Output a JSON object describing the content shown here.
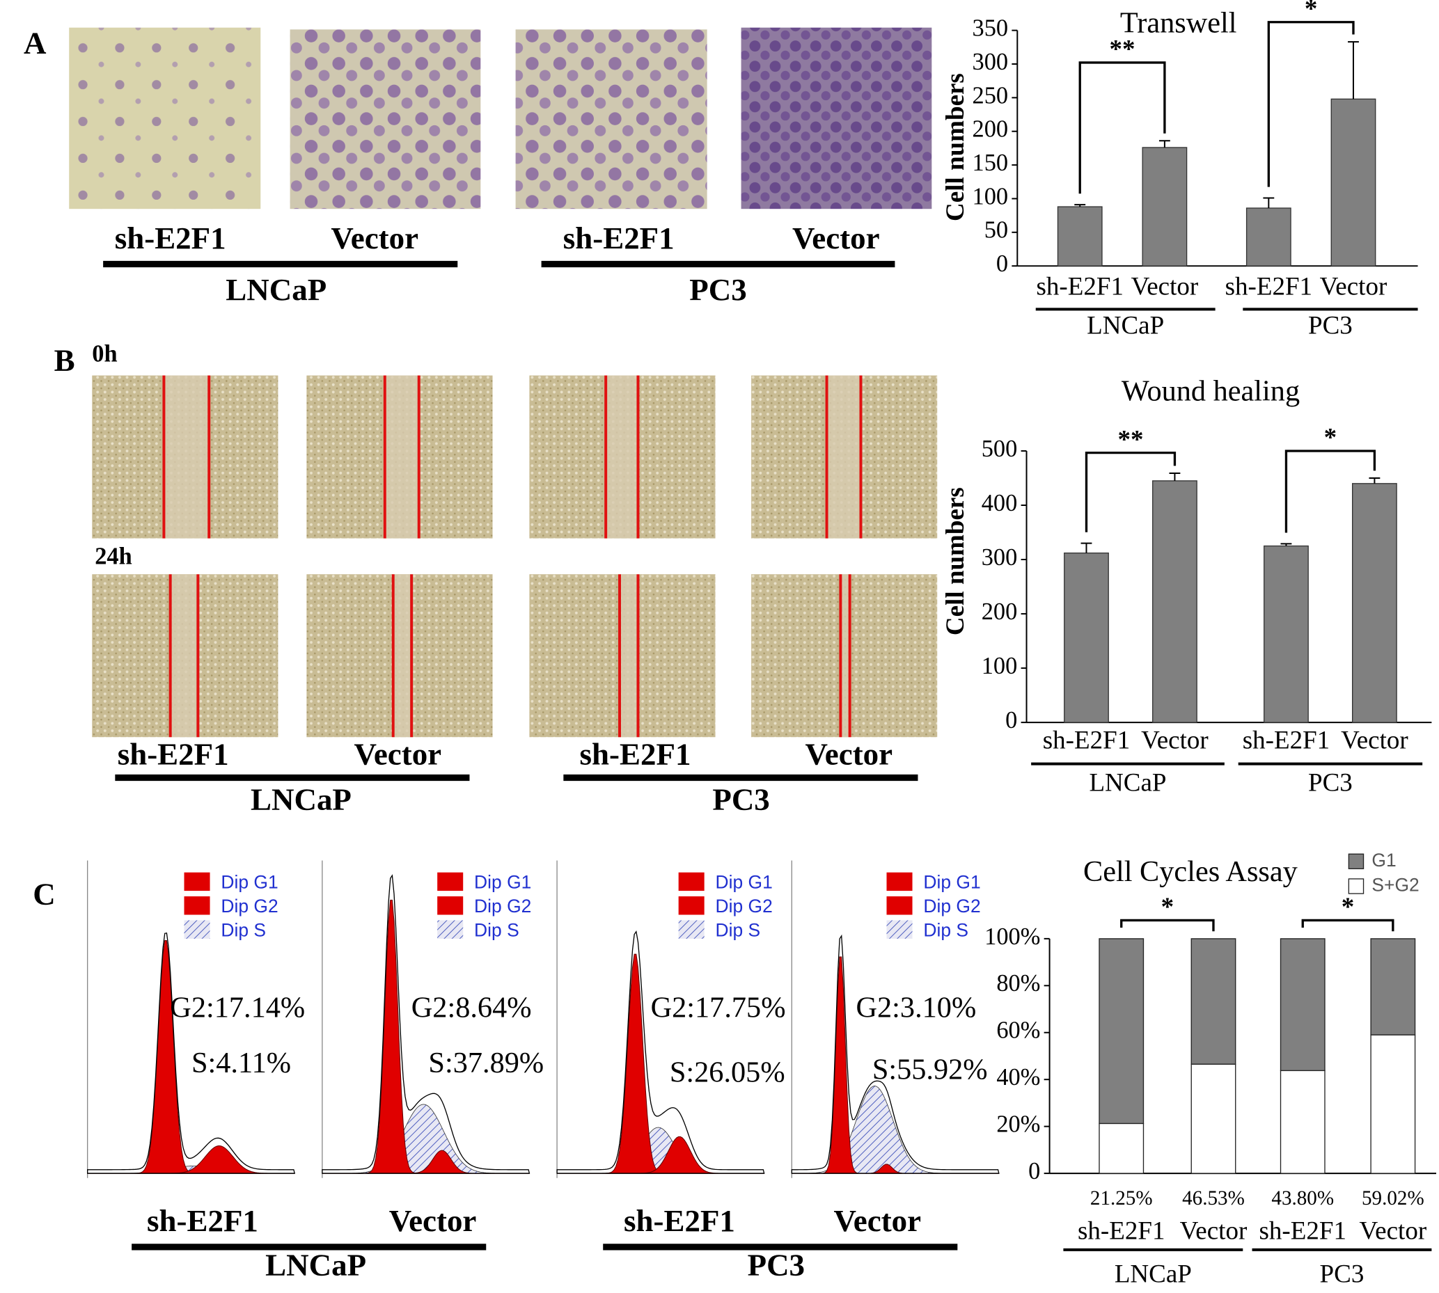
{
  "panels": {
    "A": {
      "letter": "A",
      "labels": [
        "sh-E2F1",
        "Vector",
        "sh-E2F1",
        "Vector"
      ],
      "groups": [
        "LNCaP",
        "PC3"
      ]
    },
    "B": {
      "letter": "B",
      "times": [
        "0h",
        "24h"
      ],
      "labels": [
        "sh-E2F1",
        "Vector",
        "sh-E2F1",
        "Vector"
      ],
      "groups": [
        "LNCaP",
        "PC3"
      ]
    },
    "C": {
      "letter": "C",
      "labels": [
        "sh-E2F1",
        "Vector",
        "sh-E2F1",
        "Vector"
      ],
      "groups": [
        "LNCaP",
        "PC3"
      ],
      "histogram_legend": [
        "Dip G1",
        "Dip G2",
        "Dip S"
      ],
      "stats": [
        [
          "G2:17.14%",
          "S:4.11%"
        ],
        [
          "G2:8.64%",
          "S:37.89%"
        ],
        [
          "G2:17.75%",
          "S:26.05%"
        ],
        [
          "G2:3.10%",
          "S:55.92%"
        ]
      ]
    }
  },
  "chart_data": [
    {
      "type": "bar",
      "title": "Transwell",
      "ylabel": "Cell numbers",
      "categories": [
        "sh-E2F1",
        "Vector",
        "sh-E2F1",
        "Vector"
      ],
      "group_labels": [
        "LNCaP",
        "PC3"
      ],
      "values": [
        88,
        176,
        86,
        248
      ],
      "errors": [
        3,
        10,
        15,
        85
      ],
      "color": "#808080",
      "annotations": [
        "**",
        "*"
      ],
      "ylim": [
        0,
        350
      ],
      "yticks": [
        0,
        50,
        100,
        150,
        200,
        250,
        300,
        350
      ]
    },
    {
      "type": "bar",
      "title": "Wound healing",
      "ylabel": "Cell numbers",
      "categories": [
        "sh-E2F1",
        "Vector",
        "sh-E2F1",
        "Vector"
      ],
      "group_labels": [
        "LNCaP",
        "PC3"
      ],
      "values": [
        312,
        445,
        325,
        440
      ],
      "errors": [
        18,
        14,
        4,
        10
      ],
      "color": "#808080",
      "annotations": [
        "**",
        "*"
      ],
      "ylim": [
        0,
        500
      ],
      "yticks": [
        0,
        100,
        200,
        300,
        400,
        500
      ]
    },
    {
      "type": "stacked_bar",
      "title": "Cell Cycles Assay",
      "categories": [
        "sh-E2F1",
        "Vector",
        "sh-E2F1",
        "Vector"
      ],
      "group_labels": [
        "LNCaP",
        "PC3"
      ],
      "series": [
        {
          "name": "G1",
          "color": "#808080",
          "values": [
            78.75,
            53.47,
            56.2,
            40.98
          ]
        },
        {
          "name": "S+G2",
          "color": "#ffffff",
          "values": [
            21.25,
            46.53,
            43.8,
            59.02
          ],
          "value_labels": [
            "21.25%",
            "46.53%",
            "43.80%",
            "59.02%"
          ]
        }
      ],
      "annotations": [
        "*",
        "*"
      ],
      "ylim": [
        0,
        100
      ],
      "yticks": [
        0,
        {
          "value": 20,
          "label": "20%"
        },
        {
          "value": 40,
          "label": "40%"
        },
        {
          "value": 60,
          "label": "60%"
        },
        {
          "value": 80,
          "label": "80%"
        },
        {
          "value": 100,
          "label": "100%"
        }
      ]
    }
  ]
}
